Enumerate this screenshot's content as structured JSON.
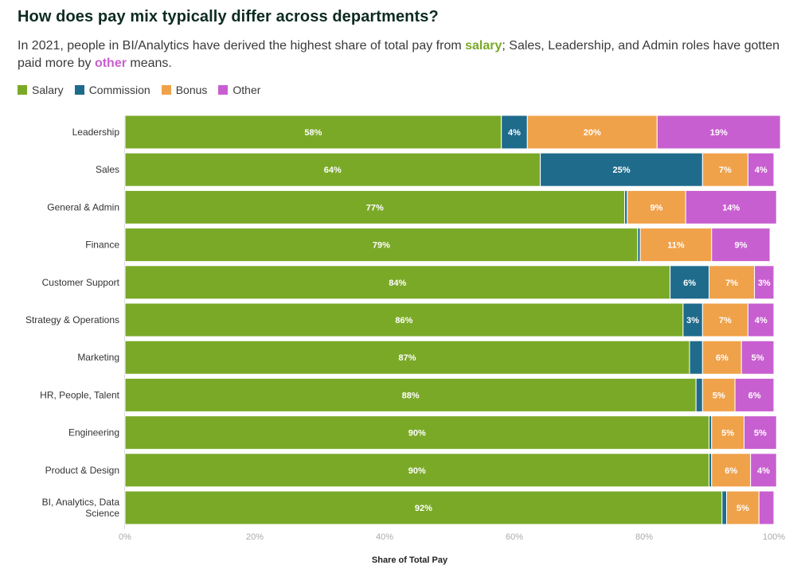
{
  "header": {
    "title": "How does pay mix typically differ across departments?",
    "subtitle_parts": {
      "before_salary": "In 2021, people in BI/Analytics have derived the highest share of total pay from ",
      "salary_word": "salary",
      "middle": "; Sales, Leadership, and Admin roles have gotten paid more by ",
      "other_word": "other",
      "after": " means."
    }
  },
  "legend": [
    {
      "name": "Salary",
      "color": "#7aa928"
    },
    {
      "name": "Commission",
      "color": "#1f6b8c"
    },
    {
      "name": "Bonus",
      "color": "#f0a24a"
    },
    {
      "name": "Other",
      "color": "#c85fd0"
    }
  ],
  "chart_data": {
    "type": "bar",
    "orientation": "horizontal",
    "stacked": true,
    "xlabel": "Share of Total Pay",
    "xlim": [
      0,
      100
    ],
    "xticks": [
      "0%",
      "20%",
      "40%",
      "60%",
      "80%",
      "100%"
    ],
    "categories": [
      "Leadership",
      "Sales",
      "General & Admin",
      "Finance",
      "Customer Support",
      "Strategy & Operations",
      "Marketing",
      "HR, People, Talent",
      "Engineering",
      "Product & Design",
      "BI, Analytics, Data Science"
    ],
    "series": [
      {
        "name": "Salary",
        "color": "#7aa928",
        "values": [
          58,
          64,
          77,
          79,
          84,
          86,
          87,
          88,
          90,
          90,
          92
        ],
        "labels": [
          "58%",
          "64%",
          "77%",
          "79%",
          "84%",
          "86%",
          "87%",
          "88%",
          "90%",
          "90%",
          "92%"
        ]
      },
      {
        "name": "Commission",
        "color": "#1f6b8c",
        "values": [
          4,
          25,
          0.4,
          0.4,
          6,
          3,
          2,
          1,
          0.4,
          0.4,
          0.7
        ],
        "labels": [
          "4%",
          "25%",
          "",
          "",
          "6%",
          "3%",
          "",
          "",
          "",
          "",
          ""
        ]
      },
      {
        "name": "Bonus",
        "color": "#f0a24a",
        "values": [
          20,
          7,
          9,
          11,
          7,
          7,
          6,
          5,
          5,
          6,
          5
        ],
        "labels": [
          "20%",
          "7%",
          "9%",
          "11%",
          "7%",
          "7%",
          "6%",
          "5%",
          "5%",
          "6%",
          "5%"
        ]
      },
      {
        "name": "Other",
        "color": "#c85fd0",
        "values": [
          19,
          4,
          14,
          9,
          3,
          4,
          5,
          6,
          5,
          4,
          2.3
        ],
        "labels": [
          "19%",
          "4%",
          "14%",
          "9%",
          "3%",
          "4%",
          "5%",
          "6%",
          "5%",
          "4%",
          ""
        ]
      }
    ],
    "grid": false,
    "legend_position": "top-left"
  }
}
